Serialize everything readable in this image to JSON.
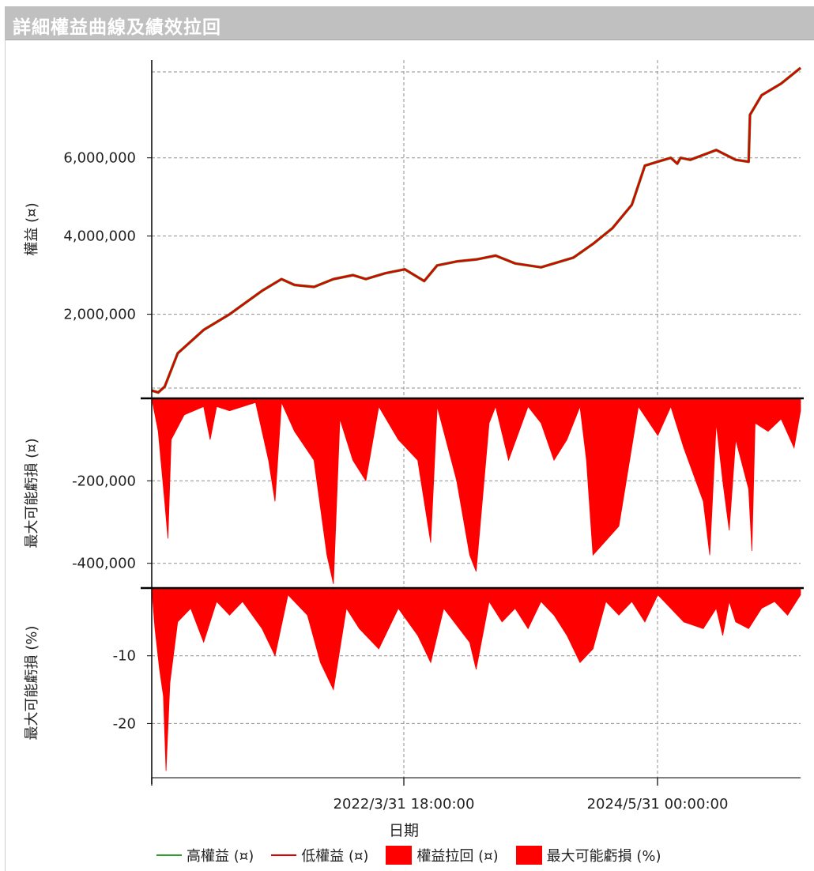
{
  "panel": {
    "title": "詳細權益曲線及績效拉回"
  },
  "colors": {
    "high_equity": "#2e9e2e",
    "low_equity": "#e00000",
    "drawdown_fill": "#ff0000",
    "grid": "#909090",
    "axis": "#000000"
  },
  "chart_data": [
    {
      "type": "line",
      "ylabel": "權益 (¤)",
      "ylim": [
        -150000,
        8500000
      ],
      "yticks": [
        2000000,
        4000000,
        6000000
      ],
      "ytick_labels": [
        "2,000,000",
        "4,000,000",
        "6,000,000"
      ],
      "grid": true,
      "series": [
        {
          "name": "高權益 (¤)",
          "color": "#2e9e2e",
          "x": [
            0,
            0.01,
            0.02,
            0.04,
            0.08,
            0.12,
            0.17,
            0.2,
            0.22,
            0.25,
            0.28,
            0.31,
            0.33,
            0.36,
            0.39,
            0.42,
            0.44,
            0.47,
            0.5,
            0.53,
            0.56,
            0.6,
            0.65,
            0.68,
            0.71,
            0.74,
            0.76,
            0.78,
            0.8,
            0.81,
            0.815,
            0.83,
            0.87,
            0.9,
            0.92,
            0.922,
            0.94,
            0.97,
            1.0
          ],
          "values": [
            50000,
            0,
            150000,
            1000000,
            1600000,
            2000000,
            2600000,
            2900000,
            2750000,
            2700000,
            2900000,
            3000000,
            2900000,
            3050000,
            3150000,
            2850000,
            3250000,
            3350000,
            3400000,
            3500000,
            3300000,
            3200000,
            3450000,
            3800000,
            4200000,
            4800000,
            5800000,
            5900000,
            6000000,
            5850000,
            6000000,
            5950000,
            6200000,
            5950000,
            5900000,
            7100000,
            7600000,
            7900000,
            8300000
          ]
        },
        {
          "name": "低權益 (¤)",
          "color": "#e00000",
          "x": [
            0,
            0.01,
            0.02,
            0.04,
            0.08,
            0.12,
            0.17,
            0.2,
            0.22,
            0.25,
            0.28,
            0.31,
            0.33,
            0.36,
            0.39,
            0.42,
            0.44,
            0.47,
            0.5,
            0.53,
            0.56,
            0.6,
            0.65,
            0.68,
            0.71,
            0.74,
            0.76,
            0.78,
            0.8,
            0.81,
            0.815,
            0.83,
            0.87,
            0.9,
            0.92,
            0.922,
            0.94,
            0.97,
            1.0
          ],
          "values": [
            50000,
            0,
            150000,
            1000000,
            1600000,
            2000000,
            2600000,
            2900000,
            2750000,
            2700000,
            2900000,
            3000000,
            2900000,
            3050000,
            3150000,
            2850000,
            3250000,
            3350000,
            3400000,
            3500000,
            3300000,
            3200000,
            3450000,
            3800000,
            4200000,
            4800000,
            5800000,
            5900000,
            6000000,
            5850000,
            6000000,
            5950000,
            6200000,
            5950000,
            5900000,
            7100000,
            7600000,
            7900000,
            8300000
          ]
        }
      ]
    },
    {
      "type": "area",
      "ylabel": "最大可能虧損 (¤)",
      "ylim": [
        -460000,
        0
      ],
      "yticks": [
        -200000,
        -400000
      ],
      "ytick_labels": [
        "-200,000",
        "-400,000"
      ],
      "grid": true,
      "series": [
        {
          "name": "權益拉回 (¤)",
          "color": "#ff0000",
          "x": [
            0,
            0.01,
            0.02,
            0.025,
            0.03,
            0.05,
            0.08,
            0.09,
            0.1,
            0.12,
            0.16,
            0.18,
            0.19,
            0.2,
            0.22,
            0.25,
            0.27,
            0.28,
            0.29,
            0.31,
            0.33,
            0.35,
            0.38,
            0.41,
            0.43,
            0.44,
            0.47,
            0.49,
            0.5,
            0.52,
            0.53,
            0.55,
            0.58,
            0.6,
            0.62,
            0.64,
            0.66,
            0.67,
            0.68,
            0.72,
            0.75,
            0.78,
            0.8,
            0.82,
            0.85,
            0.86,
            0.87,
            0.88,
            0.89,
            0.9,
            0.92,
            0.925,
            0.93,
            0.95,
            0.97,
            0.99,
            1.0
          ],
          "values": [
            0,
            -80000,
            -250000,
            -340000,
            -100000,
            -40000,
            -20000,
            -100000,
            -20000,
            -30000,
            -10000,
            -150000,
            -250000,
            -10000,
            -80000,
            -150000,
            -380000,
            -450000,
            -50000,
            -150000,
            -200000,
            -20000,
            -100000,
            -150000,
            -350000,
            -20000,
            -200000,
            -380000,
            -420000,
            -60000,
            -20000,
            -150000,
            -20000,
            -60000,
            -150000,
            -100000,
            -20000,
            -150000,
            -380000,
            -310000,
            -20000,
            -90000,
            -20000,
            -120000,
            -250000,
            -380000,
            -60000,
            -200000,
            -320000,
            -100000,
            -220000,
            -370000,
            -60000,
            -80000,
            -50000,
            -120000,
            -30000
          ]
        }
      ]
    },
    {
      "type": "area",
      "ylabel": "最大可能虧損 (%)",
      "ylim": [
        -28,
        0
      ],
      "yticks": [
        -10,
        -20
      ],
      "ytick_labels": [
        "-10",
        "-20"
      ],
      "grid": true,
      "x_tick_labels": [
        "2022/3/31 18:00:00",
        "2024/5/31 00:00:00"
      ],
      "xlabel": "日期",
      "series": [
        {
          "name": "最大可能虧損 (%)",
          "color": "#ff0000",
          "x": [
            0,
            0.005,
            0.012,
            0.018,
            0.022,
            0.028,
            0.04,
            0.06,
            0.08,
            0.1,
            0.12,
            0.14,
            0.17,
            0.19,
            0.21,
            0.24,
            0.26,
            0.28,
            0.3,
            0.32,
            0.35,
            0.38,
            0.41,
            0.43,
            0.45,
            0.49,
            0.5,
            0.52,
            0.54,
            0.56,
            0.58,
            0.6,
            0.62,
            0.64,
            0.66,
            0.68,
            0.7,
            0.72,
            0.74,
            0.76,
            0.78,
            0.8,
            0.82,
            0.85,
            0.87,
            0.88,
            0.89,
            0.9,
            0.92,
            0.94,
            0.96,
            0.98,
            1.0
          ],
          "values": [
            0,
            -6,
            -12,
            -16,
            -27,
            -14,
            -5,
            -3,
            -8,
            -2,
            -4,
            -2,
            -6,
            -10,
            -1,
            -4,
            -11,
            -15,
            -3,
            -6,
            -9,
            -3,
            -7,
            -11,
            -3,
            -8,
            -12,
            -2,
            -5,
            -3,
            -6,
            -2,
            -4,
            -7,
            -11,
            -9,
            -2,
            -4,
            -2,
            -5,
            -1,
            -3,
            -5,
            -6,
            -3,
            -7,
            -2,
            -5,
            -6,
            -3,
            -2,
            -4,
            -1
          ]
        }
      ]
    }
  ],
  "legend": [
    {
      "label": "高權益 (¤)",
      "kind": "line",
      "color": "#2e9e2e"
    },
    {
      "label": "低權益 (¤)",
      "kind": "line",
      "color": "#e00000"
    },
    {
      "label": "權益拉回 (¤)",
      "kind": "box",
      "color": "#ff0000"
    },
    {
      "label": "最大可能虧損 (%)",
      "kind": "box",
      "color": "#ff0000"
    }
  ]
}
